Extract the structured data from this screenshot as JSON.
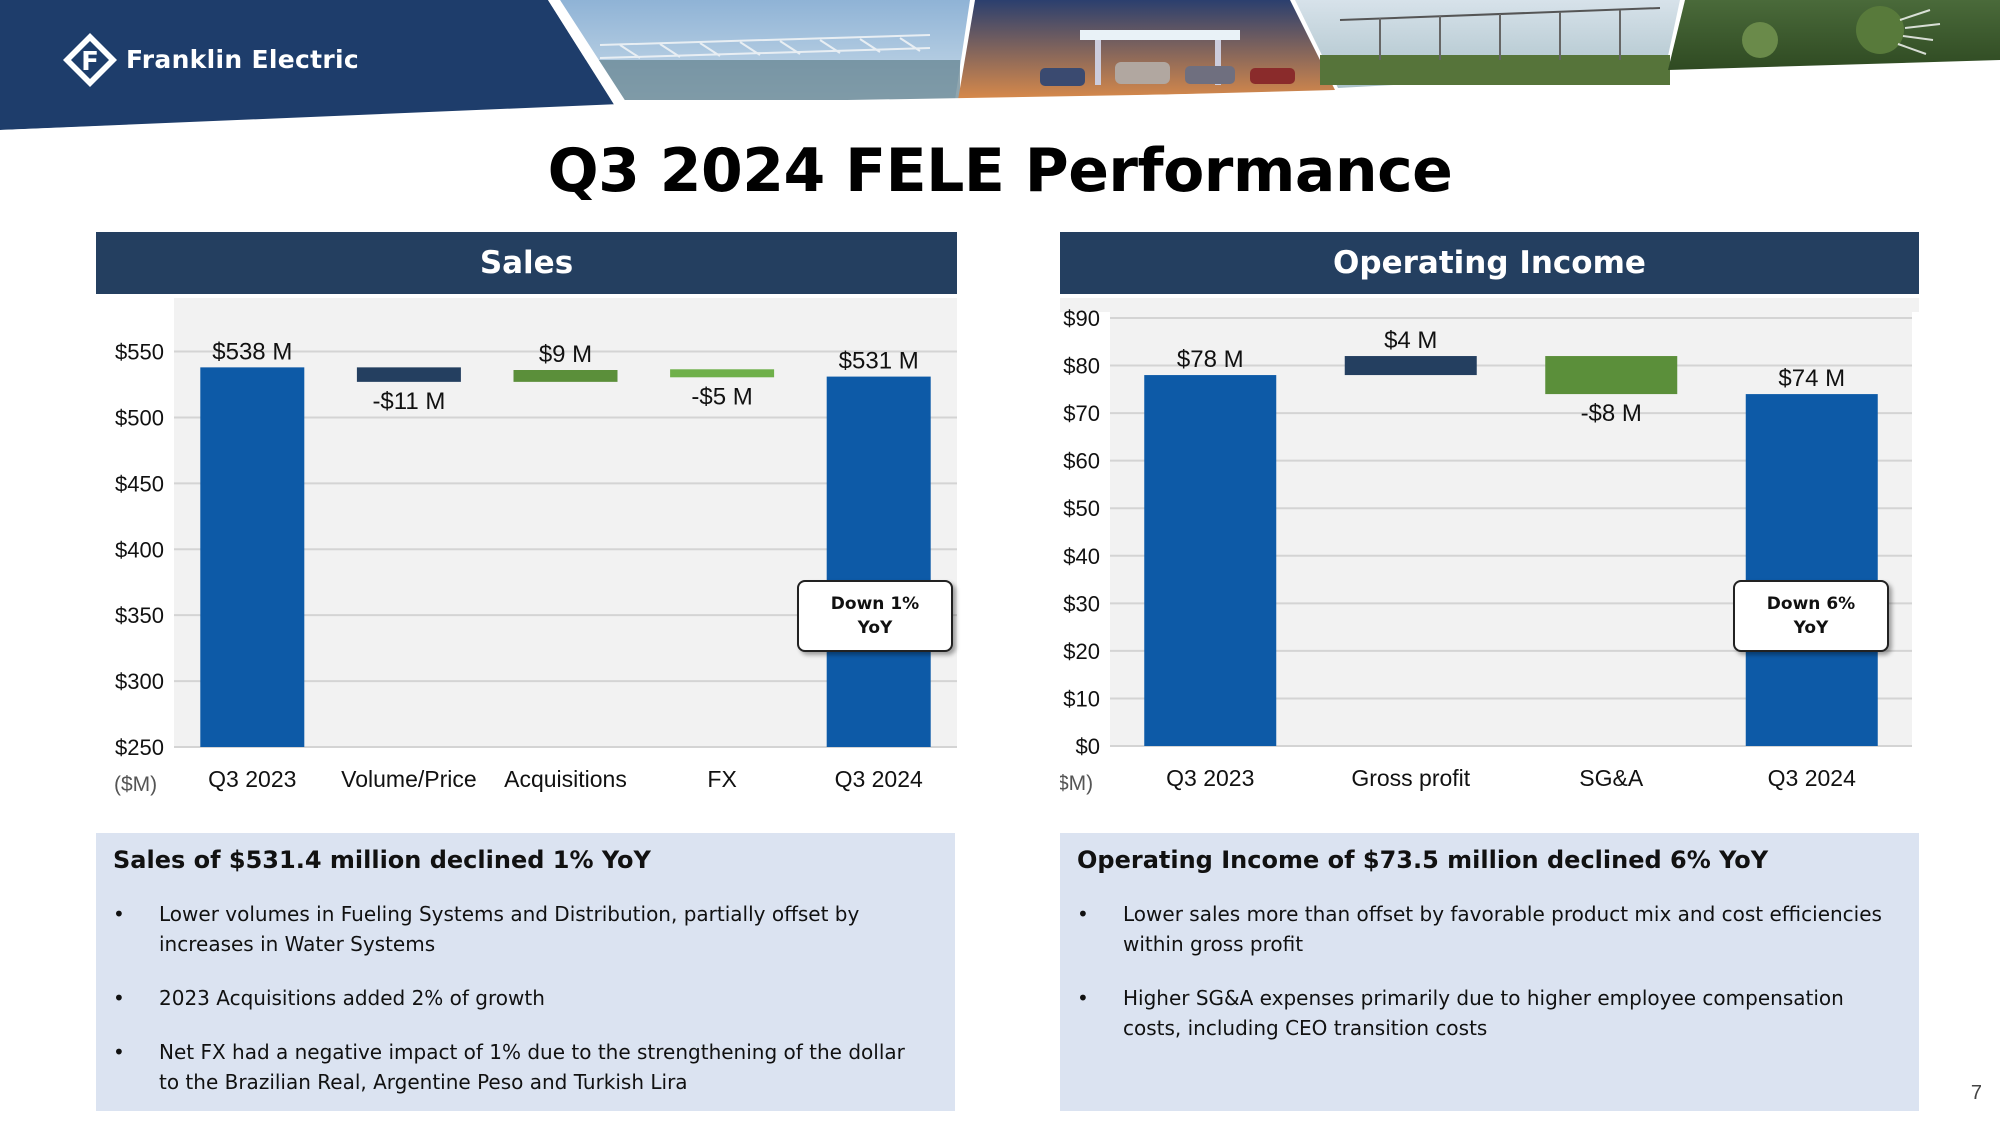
{
  "header": {
    "brand": "Franklin Electric",
    "logo_icon": "franklin-electric-logo",
    "colors": {
      "navy": "#1e3d6b",
      "bar_blue": "#0d5aa7",
      "bar_dark": "#243f60",
      "bar_green": "#5b8f3a",
      "bar_light_green": "#6fb04a",
      "summary_bg": "#dbe3f1"
    }
  },
  "title": "Q3 2024 FELE Performance",
  "sales": {
    "header": "Sales",
    "callout": [
      "Down 1%",
      "YoY"
    ],
    "summary": {
      "heading": "Sales of $531.4 million declined 1% YoY",
      "bullets": [
        "Lower volumes in Fueling Systems and Distribution, partially offset by increases in Water Systems",
        "2023 Acquisitions added 2% of growth",
        "Net FX had a negative impact of 1% due to the strengthening of the dollar to the Brazilian Real, Argentine Peso and Turkish Lira"
      ]
    }
  },
  "operating_income": {
    "header": "Operating Income",
    "callout": [
      "Down 6%",
      "YoY"
    ],
    "summary": {
      "heading": "Operating Income of $73.5 million declined 6% YoY",
      "bullets": [
        "Lower sales more than offset by favorable product mix and cost efficiencies within gross profit",
        "Higher SG&A expenses primarily due to higher employee compensation costs, including CEO transition costs"
      ]
    }
  },
  "page_number": "7",
  "chart_data": [
    {
      "type": "bar",
      "subtype": "waterfall",
      "title": "Sales",
      "unit_label": "($M)",
      "categories": [
        "Q3 2023",
        "Volume/Price",
        "Acquisitions",
        "FX",
        "Q3 2024"
      ],
      "bars": [
        {
          "category": "Q3 2023",
          "start": 250,
          "end": 538,
          "label": "$538 M",
          "kind": "total"
        },
        {
          "category": "Volume/Price",
          "start": 538,
          "end": 527,
          "label": "-$11 M",
          "kind": "decrease"
        },
        {
          "category": "Acquisitions",
          "start": 527,
          "end": 536,
          "label": "$9 M",
          "kind": "increase"
        },
        {
          "category": "FX",
          "start": 536,
          "end": 531,
          "label": "-$5 M",
          "kind": "decrease"
        },
        {
          "category": "Q3 2024",
          "start": 250,
          "end": 531,
          "label": "$531 M",
          "kind": "total"
        }
      ],
      "ylim": [
        250,
        580
      ],
      "yticks": [
        250,
        300,
        350,
        400,
        450,
        500,
        550
      ],
      "ytick_labels": [
        "$250",
        "$300",
        "$350",
        "$400",
        "$450",
        "$500",
        "$550"
      ],
      "grid": true
    },
    {
      "type": "bar",
      "subtype": "waterfall",
      "title": "Operating Income",
      "unit_label": "($M)",
      "categories": [
        "Q3 2023",
        "Gross profit",
        "SG&A",
        "Q3 2024"
      ],
      "bars": [
        {
          "category": "Q3 2023",
          "start": 0,
          "end": 78,
          "label": "$78 M",
          "kind": "total"
        },
        {
          "category": "Gross profit",
          "start": 78,
          "end": 82,
          "label": "$4 M",
          "kind": "increase"
        },
        {
          "category": "SG&A",
          "start": 82,
          "end": 74,
          "label": "-$8 M",
          "kind": "decrease"
        },
        {
          "category": "Q3 2024",
          "start": 0,
          "end": 74,
          "label": "$74 M",
          "kind": "total"
        }
      ],
      "ylim": [
        0,
        90
      ],
      "yticks": [
        0,
        10,
        20,
        30,
        40,
        50,
        60,
        70,
        80,
        90
      ],
      "ytick_labels": [
        "$0",
        "$10",
        "$20",
        "$30",
        "$40",
        "$50",
        "$60",
        "$70",
        "$80",
        "$90"
      ],
      "grid": true
    }
  ]
}
